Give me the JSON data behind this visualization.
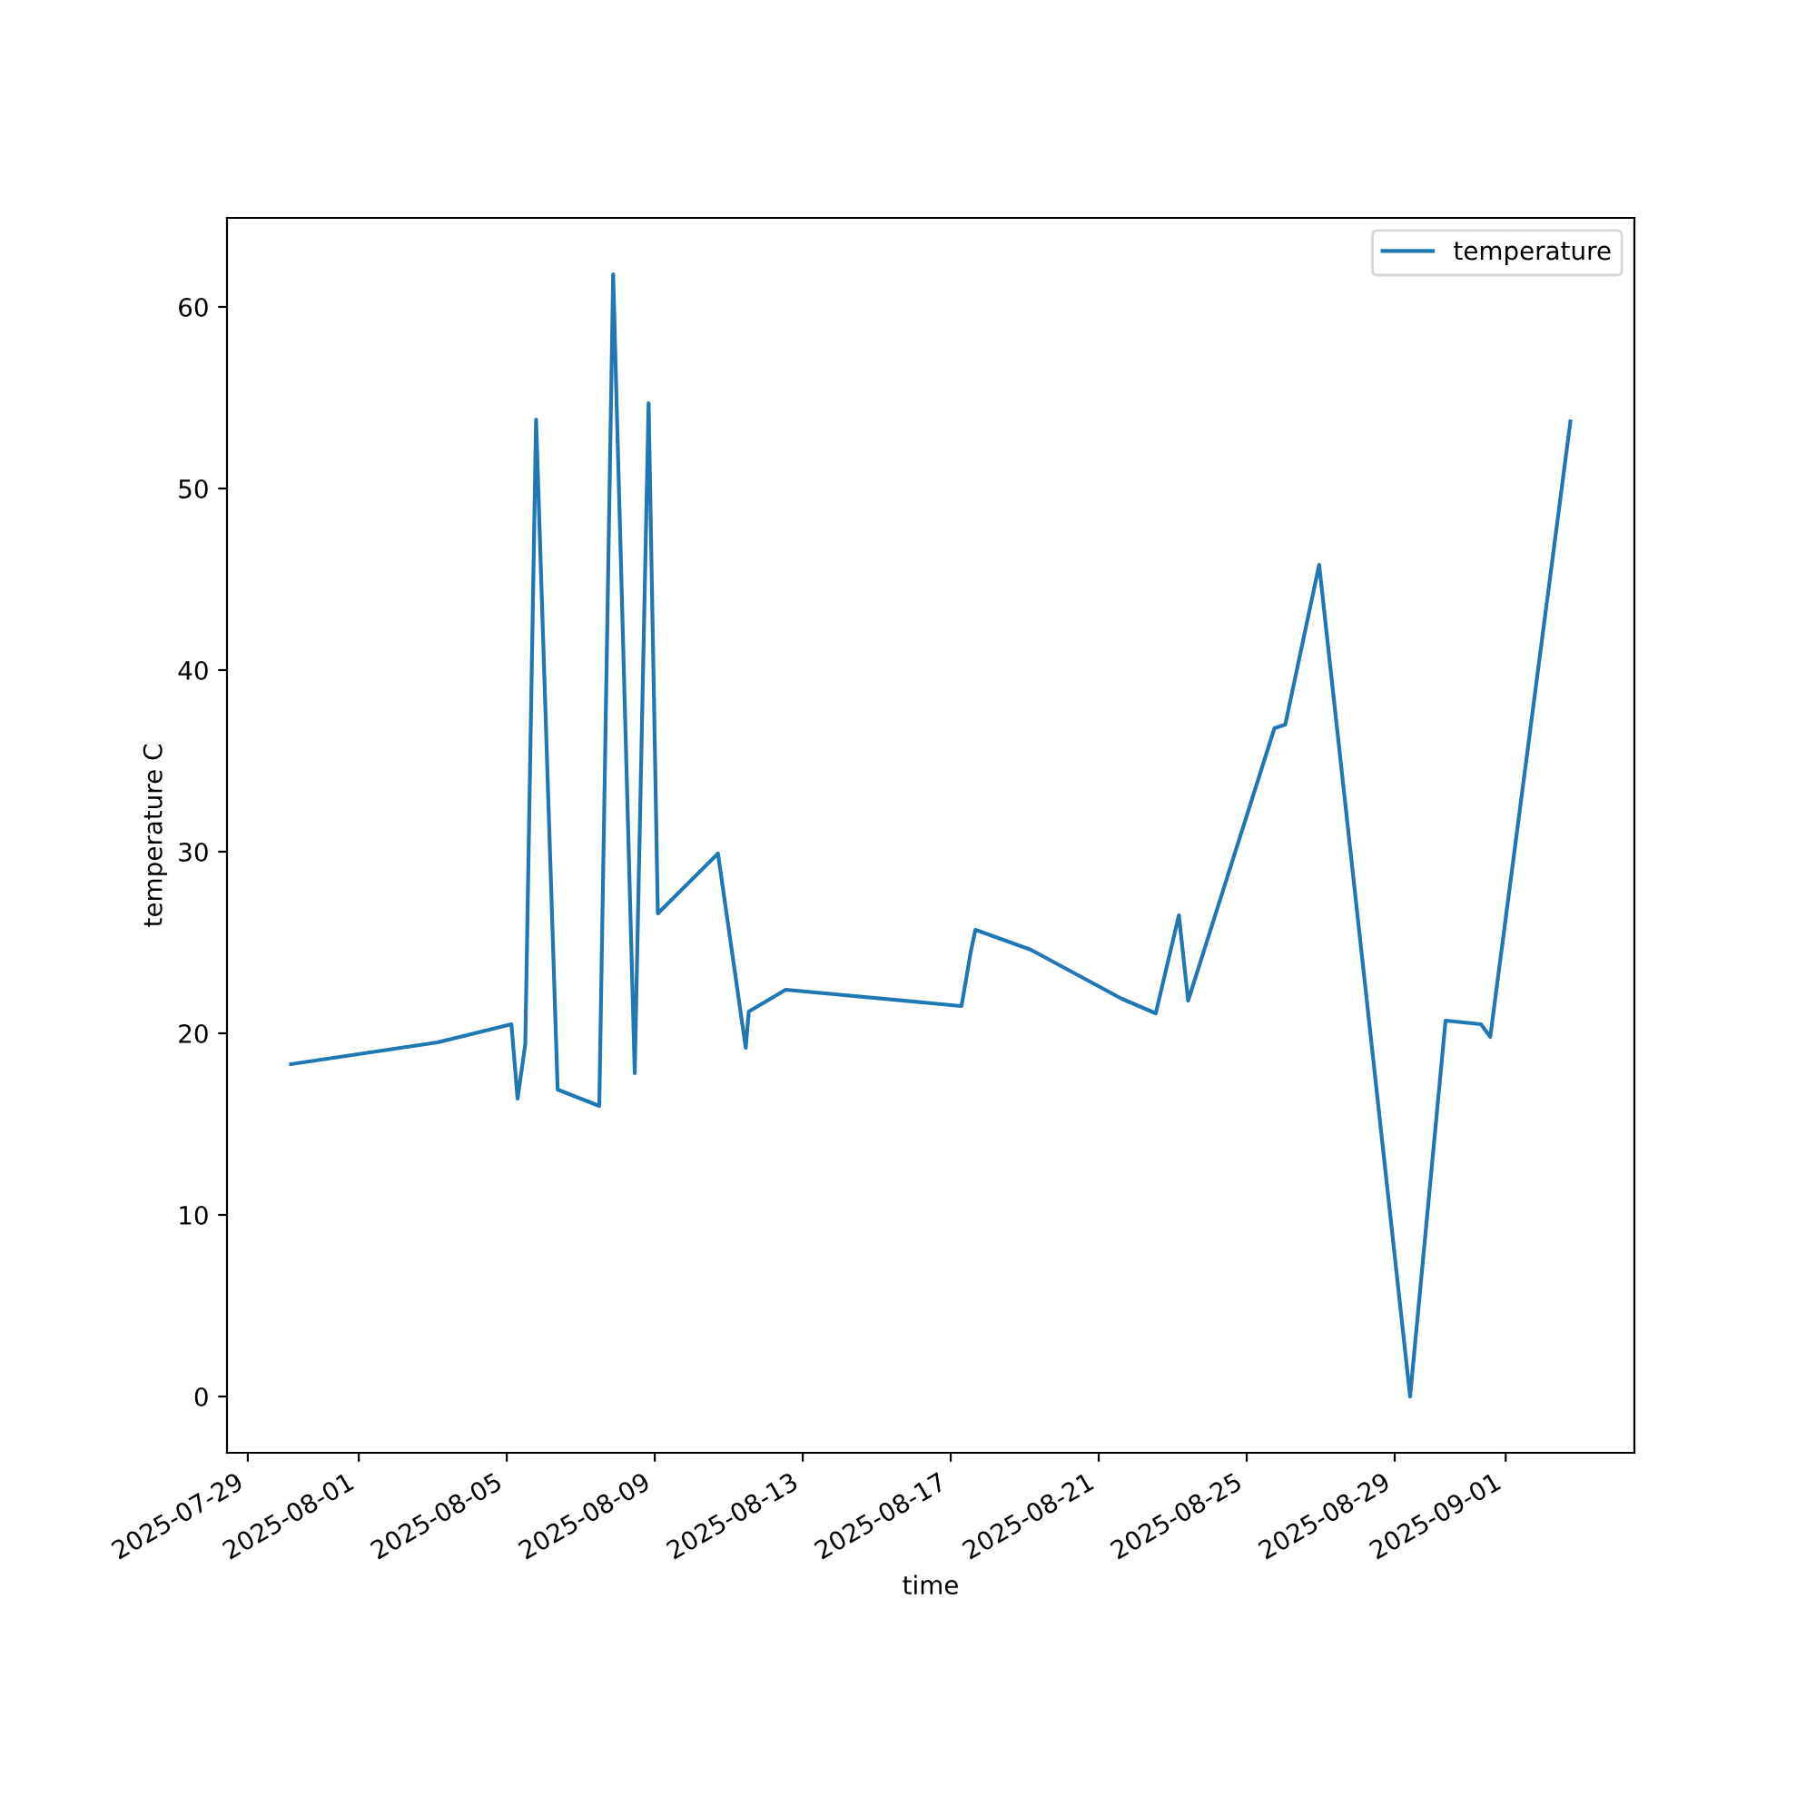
{
  "chart_data": {
    "type": "line",
    "x": [
      "2025-07-30T04:00",
      "2025-08-03T03:00",
      "2025-08-05T03:00",
      "2025-08-05T07:00",
      "2025-08-05T12:00",
      "2025-08-05T19:00",
      "2025-08-06T09:00",
      "2025-08-07T12:00",
      "2025-08-07T21:00",
      "2025-08-08T11:00",
      "2025-08-08T20:00",
      "2025-08-09T02:00",
      "2025-08-10T17:00",
      "2025-08-11T11:00",
      "2025-08-11T13:00",
      "2025-08-12T13:00",
      "2025-08-17T07:00",
      "2025-08-17T13:00",
      "2025-08-17T16:00",
      "2025-08-19T04:00",
      "2025-08-21T15:00",
      "2025-08-22T13:00",
      "2025-08-23T04:00",
      "2025-08-23T10:00",
      "2025-08-25T18:00",
      "2025-08-26T01:00",
      "2025-08-26T23:00",
      "2025-08-29T10:00",
      "2025-08-30T09:00",
      "2025-08-31T08:00",
      "2025-08-31T14:00",
      "2025-09-02T18:00"
    ],
    "series": [
      {
        "name": "temperature",
        "color": "#1f77b4",
        "values": [
          18.3,
          19.5,
          20.5,
          16.4,
          19.4,
          53.8,
          16.9,
          16.0,
          61.8,
          17.8,
          54.7,
          26.6,
          29.9,
          19.2,
          21.2,
          22.4,
          21.5,
          24.5,
          25.7,
          24.6,
          21.9,
          21.1,
          26.5,
          21.8,
          36.8,
          37.0,
          45.8,
          0.0,
          20.7,
          20.5,
          19.8,
          53.7
        ]
      }
    ],
    "xlabel": "time",
    "ylabel": "temperature C",
    "xlim": [
      "2025-07-28T10:30",
      "2025-09-04T11:30"
    ],
    "xticks": [
      "2025-07-29",
      "2025-08-01",
      "2025-08-05",
      "2025-08-09",
      "2025-08-13",
      "2025-08-17",
      "2025-08-21",
      "2025-08-25",
      "2025-08-29",
      "2025-09-01"
    ],
    "ylim": [
      -3.1,
      64.9
    ],
    "yticks": [
      0,
      10,
      20,
      30,
      40,
      50,
      60
    ],
    "legend": "top right",
    "grid": false,
    "marker": "none",
    "line_style": "solid"
  }
}
